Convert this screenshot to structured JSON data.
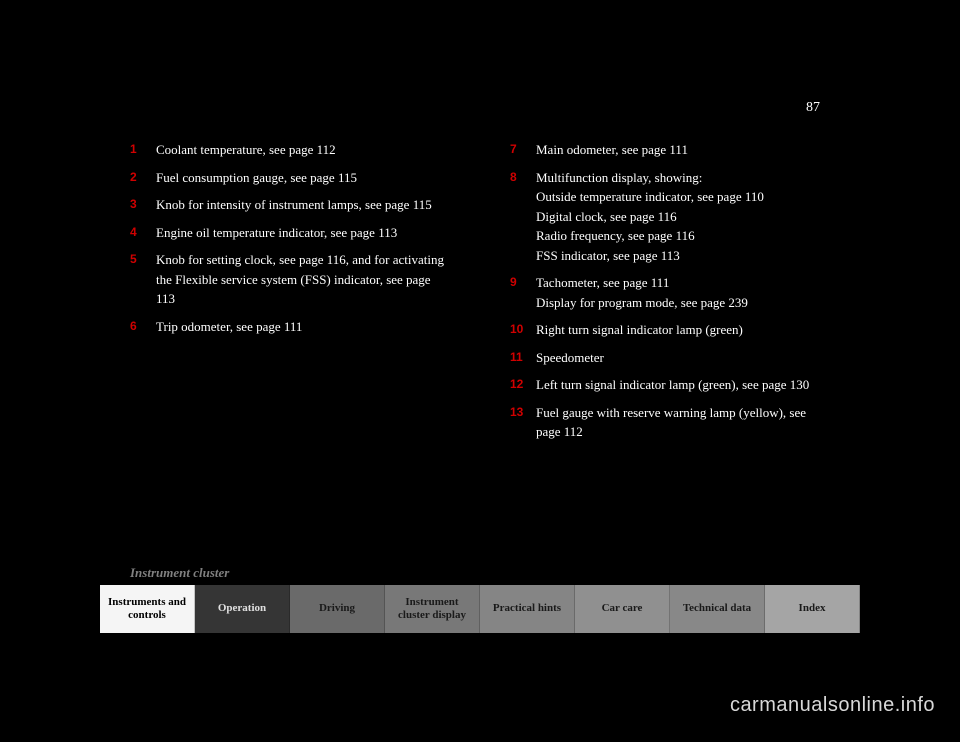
{
  "page_number": "87",
  "left_items": [
    {
      "num": "1",
      "text": "Coolant temperature, see page 112"
    },
    {
      "num": "2",
      "text": "Fuel consumption gauge, see page 115"
    },
    {
      "num": "3",
      "text": "Knob for intensity of instrument lamps, see page 115"
    },
    {
      "num": "4",
      "text": "Engine oil temperature indicator, see page 113"
    },
    {
      "num": "5",
      "text": "Knob for setting clock, see page 116, and for activating the Flexible service system (FSS) indicator, see page 113"
    },
    {
      "num": "6",
      "text": "Trip odometer, see page 111"
    }
  ],
  "right_items": [
    {
      "num": "7",
      "text": "Main odometer, see page 111"
    },
    {
      "num": "8",
      "text": "Multifunction display, showing:\nOutside temperature indicator, see page 110\nDigital clock, see page 116\nRadio frequency, see page 116\nFSS indicator, see page 113"
    },
    {
      "num": "9",
      "text": "Tachometer, see page 111\nDisplay for program mode, see page 239"
    },
    {
      "num": "10",
      "text": "Right turn signal indicator lamp (green)"
    },
    {
      "num": "11",
      "text": "Speedometer"
    },
    {
      "num": "12",
      "text": "Left turn signal indicator lamp (green), see page 130"
    },
    {
      "num": "13",
      "text": "Fuel gauge with reserve warning lamp (yellow), see page 112"
    }
  ],
  "section_label": "Instrument cluster",
  "nav": [
    "Instruments and controls",
    "Operation",
    "Driving",
    "Instrument cluster display",
    "Practical hints",
    "Car care",
    "Technical data",
    "Index"
  ],
  "watermark": "carmanualsonline.info"
}
